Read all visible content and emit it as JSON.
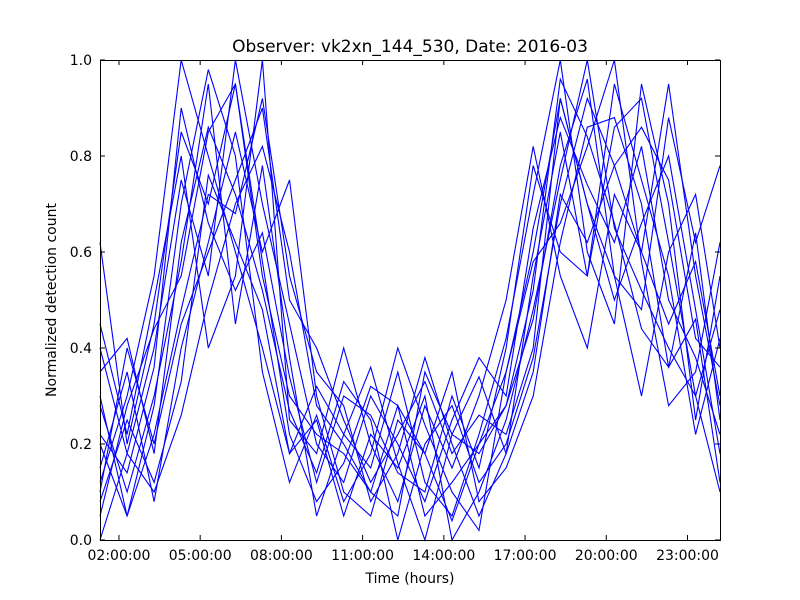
{
  "chart_data": {
    "type": "line",
    "title": "Observer: vk2xn_144_530, Date: 2016-03",
    "xlabel": "Time (hours)",
    "ylabel": "Normalized detection count",
    "xlim": [
      1.3,
      24.2
    ],
    "ylim": [
      0.0,
      1.0
    ],
    "grid": false,
    "line_color": "#0000ff",
    "x_ticks": [
      {
        "value": 2,
        "label": "02:00:00"
      },
      {
        "value": 5,
        "label": "05:00:00"
      },
      {
        "value": 8,
        "label": "08:00:00"
      },
      {
        "value": 11,
        "label": "11:00:00"
      },
      {
        "value": 14,
        "label": "14:00:00"
      },
      {
        "value": 17,
        "label": "17:00:00"
      },
      {
        "value": 20,
        "label": "20:00:00"
      },
      {
        "value": 23,
        "label": "23:00:00"
      }
    ],
    "y_ticks": [
      {
        "value": 0.0,
        "label": "0.0"
      },
      {
        "value": 0.2,
        "label": "0.2"
      },
      {
        "value": 0.4,
        "label": "0.4"
      },
      {
        "value": 0.6,
        "label": "0.6"
      },
      {
        "value": 0.8,
        "label": "0.8"
      },
      {
        "value": 1.0,
        "label": "1.0"
      }
    ],
    "x": [
      1.3,
      2.3,
      3.3,
      4.3,
      5.3,
      6.3,
      7.3,
      8.3,
      9.3,
      10.3,
      11.3,
      12.3,
      13.3,
      14.3,
      15.3,
      16.3,
      17.3,
      18.3,
      19.3,
      20.3,
      21.3,
      22.3,
      23.3,
      24.2
    ],
    "series": [
      {
        "values": [
          0.62,
          0.2,
          0.45,
          0.85,
          0.7,
          0.95,
          0.55,
          0.3,
          0.22,
          0.18,
          0.1,
          0.28,
          0.05,
          0.12,
          0.2,
          0.35,
          0.6,
          0.92,
          0.7,
          0.55,
          0.48,
          0.88,
          0.62,
          0.78
        ]
      },
      {
        "values": [
          0.12,
          0.3,
          0.55,
          1.0,
          0.8,
          0.6,
          0.4,
          0.18,
          0.25,
          0.05,
          0.22,
          0.15,
          0.3,
          0.0,
          0.1,
          0.25,
          0.48,
          0.75,
          1.0,
          0.65,
          0.52,
          0.4,
          0.3,
          0.1
        ]
      },
      {
        "values": [
          0.2,
          0.05,
          0.22,
          0.48,
          0.72,
          0.68,
          0.92,
          0.55,
          0.35,
          0.28,
          0.08,
          0.18,
          0.38,
          0.2,
          0.05,
          0.18,
          0.55,
          0.85,
          0.55,
          0.95,
          0.75,
          0.55,
          0.22,
          0.42
        ]
      },
      {
        "values": [
          0.35,
          0.42,
          0.18,
          0.62,
          0.86,
          0.72,
          0.52,
          0.27,
          0.14,
          0.33,
          0.25,
          0.0,
          0.2,
          0.28,
          0.12,
          0.2,
          0.38,
          0.7,
          0.92,
          0.78,
          0.6,
          0.45,
          0.58,
          0.3
        ]
      },
      {
        "values": [
          0.0,
          0.18,
          0.4,
          0.75,
          0.55,
          1.0,
          0.7,
          0.45,
          0.2,
          0.12,
          0.3,
          0.2,
          0.08,
          0.25,
          0.38,
          0.3,
          0.65,
          0.88,
          0.74,
          0.62,
          0.82,
          0.5,
          0.38,
          0.22
        ]
      },
      {
        "values": [
          0.28,
          0.1,
          0.3,
          0.58,
          0.95,
          0.45,
          0.78,
          0.38,
          0.05,
          0.22,
          0.15,
          0.35,
          0.12,
          0.05,
          0.22,
          0.42,
          0.72,
          1.0,
          0.6,
          0.45,
          0.95,
          0.7,
          0.25,
          0.55
        ]
      },
      {
        "values": [
          0.15,
          0.35,
          0.08,
          0.4,
          0.62,
          0.85,
          0.6,
          0.75,
          0.3,
          0.1,
          0.05,
          0.25,
          0.18,
          0.35,
          0.08,
          0.15,
          0.3,
          0.62,
          0.86,
          0.88,
          0.7,
          0.36,
          0.46,
          0.12
        ]
      },
      {
        "values": [
          0.45,
          0.22,
          0.5,
          0.8,
          0.4,
          0.55,
          1.0,
          0.25,
          0.18,
          0.4,
          0.2,
          0.08,
          0.28,
          0.15,
          0.3,
          0.5,
          0.82,
          0.55,
          0.4,
          0.72,
          0.6,
          0.95,
          0.55,
          0.28
        ]
      },
      {
        "values": [
          0.08,
          0.25,
          0.12,
          0.33,
          0.76,
          0.62,
          0.48,
          0.18,
          0.32,
          0.22,
          0.36,
          0.16,
          0.0,
          0.22,
          0.18,
          0.28,
          0.46,
          0.78,
          0.96,
          0.55,
          0.3,
          0.6,
          0.72,
          0.4
        ]
      },
      {
        "values": [
          0.3,
          0.05,
          0.28,
          0.7,
          0.98,
          0.8,
          0.35,
          0.12,
          0.26,
          0.08,
          0.18,
          0.4,
          0.24,
          0.1,
          0.02,
          0.35,
          0.58,
          0.66,
          0.82,
          1.0,
          0.58,
          0.28,
          0.35,
          0.62
        ]
      },
      {
        "values": [
          0.1,
          0.4,
          0.2,
          0.45,
          0.6,
          0.75,
          0.9,
          0.5,
          0.4,
          0.25,
          0.12,
          0.22,
          0.33,
          0.18,
          0.26,
          0.22,
          0.4,
          0.92,
          0.7,
          0.5,
          0.66,
          0.8,
          0.48,
          0.18
        ]
      },
      {
        "values": [
          0.22,
          0.14,
          0.36,
          0.9,
          0.66,
          0.52,
          0.64,
          0.34,
          0.12,
          0.3,
          0.26,
          0.14,
          0.1,
          0.3,
          0.15,
          0.4,
          0.78,
          0.6,
          0.55,
          0.86,
          0.92,
          0.62,
          0.3,
          0.48
        ]
      },
      {
        "values": [
          0.05,
          0.28,
          0.44,
          0.55,
          0.85,
          0.95,
          0.58,
          0.22,
          0.08,
          0.16,
          0.32,
          0.28,
          0.18,
          0.04,
          0.2,
          0.28,
          0.52,
          0.96,
          0.84,
          0.66,
          0.44,
          0.36,
          0.64,
          0.25
        ]
      },
      {
        "values": [
          0.4,
          0.18,
          0.1,
          0.26,
          0.5,
          0.7,
          0.82,
          0.6,
          0.28,
          0.2,
          0.1,
          0.05,
          0.35,
          0.22,
          0.34,
          0.18,
          0.35,
          0.72,
          0.62,
          0.78,
          0.86,
          0.75,
          0.42,
          0.36
        ]
      }
    ]
  }
}
